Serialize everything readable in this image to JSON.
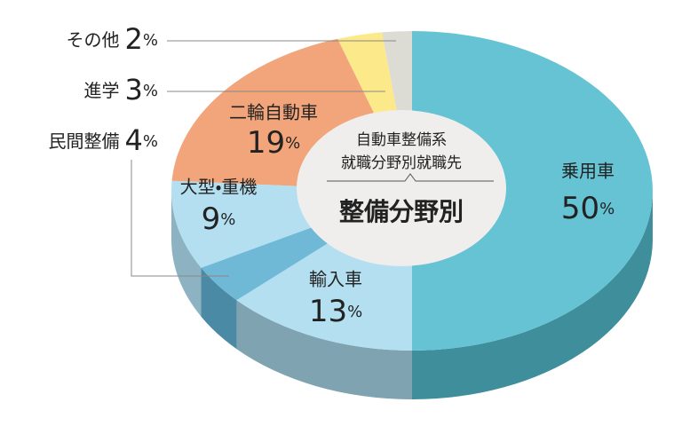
{
  "chart_data": {
    "type": "pie",
    "subtitle_lines": [
      "自動車整備系",
      "就職分野別就職先"
    ],
    "title": "整備分野別",
    "unit": "%",
    "categories": [
      "乗用車",
      "輸入車",
      "民間整備",
      "大型・重機",
      "二輪自動車",
      "進学",
      "その他"
    ],
    "values": [
      50,
      13,
      4,
      9,
      19,
      3,
      2
    ],
    "colors": [
      "#66c3d4",
      "#b3dff0",
      "#6fb8d6",
      "#b3dff0",
      "#f2a57a",
      "#fbe98a",
      "#dddcd4"
    ],
    "side_colors": [
      "#3f8e9b",
      "#7fa3b1",
      "#4a8aa4",
      "#8db3c3",
      "#c27d58",
      "#c9b95e",
      "#aaa9a1"
    ]
  }
}
